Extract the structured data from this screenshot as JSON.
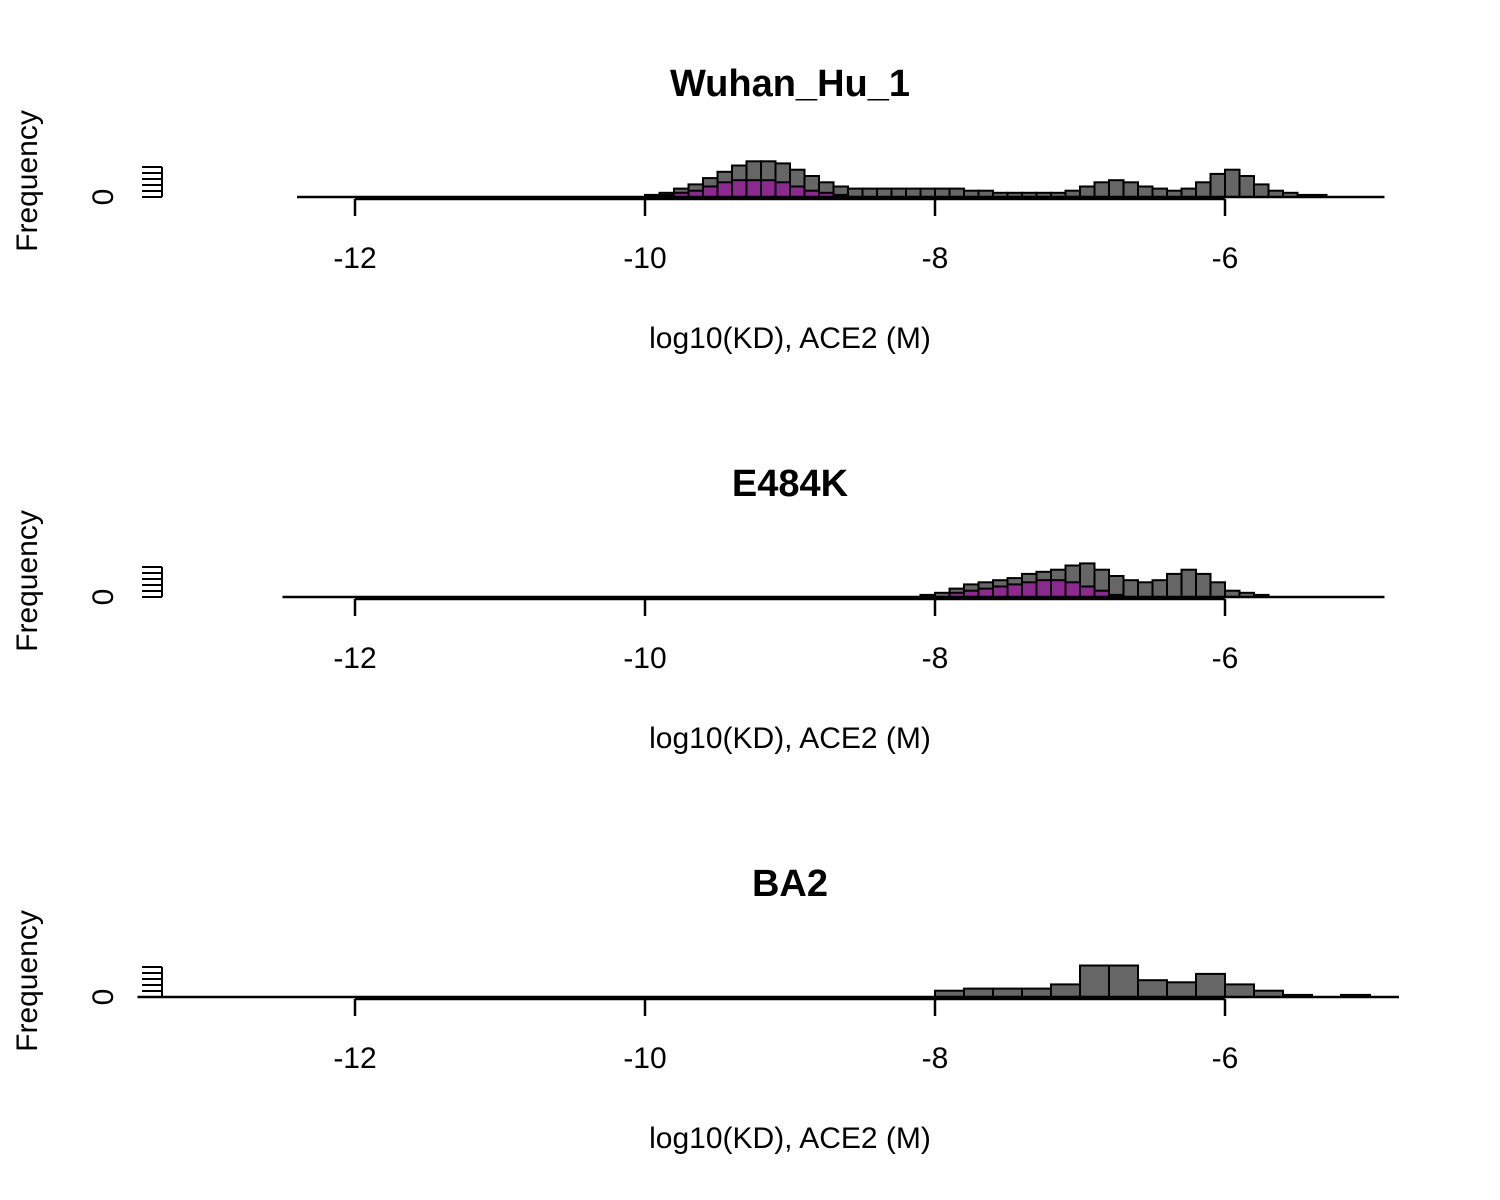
{
  "chart_data": [
    {
      "type": "bar",
      "title": "Wuhan_Hu_1",
      "xlabel": "log10(KD), ACE2 (M)",
      "ylabel": "Frequency",
      "xlim": [
        -12.4,
        -4.9
      ],
      "xticks": [
        -12,
        -10,
        -8,
        -6
      ],
      "xtick_labels": [
        "-12",
        "-10",
        "-8",
        "-6"
      ],
      "yticks_labeled": [
        0
      ],
      "ytick_labels": [
        "0"
      ],
      "grid": false,
      "series": [
        {
          "color": "#666666",
          "bin_start": -10.0,
          "bin_width": 0.1,
          "values": [
            1,
            2,
            4,
            6,
            9,
            12,
            15,
            17,
            17,
            16,
            13,
            10,
            7,
            5,
            4,
            4,
            4,
            4,
            4,
            4,
            4,
            4,
            3,
            3,
            2,
            2,
            2,
            2,
            2,
            3,
            5,
            7,
            8,
            7,
            5,
            4,
            3,
            4,
            7,
            11,
            13,
            10,
            6,
            3,
            2,
            1,
            1,
            0,
            0,
            0,
            0
          ]
        },
        {
          "color": "#8b2b8f",
          "bin_start": -10.0,
          "bin_width": 0.1,
          "values": [
            0,
            1,
            2,
            3,
            5,
            7,
            8,
            8,
            8,
            7,
            5,
            3,
            2,
            1
          ]
        }
      ]
    },
    {
      "type": "bar",
      "title": "E484K",
      "xlabel": "log10(KD), ACE2 (M)",
      "ylabel": "Frequency",
      "xlim": [
        -12.5,
        -4.9
      ],
      "xticks": [
        -12,
        -10,
        -8,
        -6
      ],
      "xtick_labels": [
        "-12",
        "-10",
        "-8",
        "-6"
      ],
      "yticks_labeled": [
        0
      ],
      "ytick_labels": [
        "0"
      ],
      "grid": false,
      "series": [
        {
          "color": "#666666",
          "bin_start": -8.1,
          "bin_width": 0.1,
          "values": [
            1,
            2,
            4,
            6,
            7,
            8,
            9,
            11,
            12,
            13,
            15,
            16,
            13,
            10,
            8,
            7,
            8,
            11,
            13,
            11,
            7,
            3,
            2,
            1,
            0,
            0
          ]
        },
        {
          "color": "#8b2b8f",
          "bin_start": -7.9,
          "bin_width": 0.1,
          "values": [
            2,
            3,
            4,
            5,
            6,
            7,
            8,
            8,
            7,
            5,
            3,
            1
          ]
        }
      ]
    },
    {
      "type": "bar",
      "title": "BA2",
      "xlabel": "log10(KD), ACE2 (M)",
      "ylabel": "Frequency",
      "xlim": [
        -13.5,
        -4.8
      ],
      "xticks": [
        -12,
        -10,
        -8,
        -6
      ],
      "xtick_labels": [
        "-12",
        "-10",
        "-8",
        "-6"
      ],
      "yticks_labeled": [
        0
      ],
      "ytick_labels": [
        "0"
      ],
      "grid": false,
      "series": [
        {
          "color": "#666666",
          "bin_start": -8.0,
          "bin_width": 0.2,
          "values": [
            3,
            4,
            4,
            4,
            6,
            15,
            15,
            8,
            7,
            11,
            6,
            3,
            1,
            0,
            1,
            0
          ]
        }
      ]
    }
  ]
}
